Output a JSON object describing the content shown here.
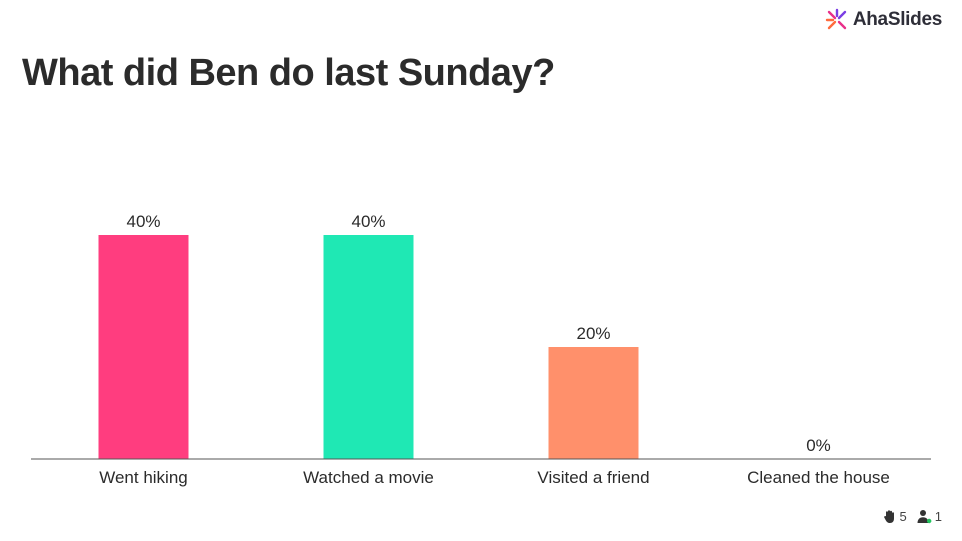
{
  "brand": {
    "name": "AhaSlides",
    "logo_icon": "ahaslides-logo-icon"
  },
  "question": {
    "title": "What did Ben do last Sunday?"
  },
  "footer": {
    "reactions_icon": "hand-icon",
    "reactions_count": "5",
    "participants_icon": "user-icon",
    "participants_count": "1"
  },
  "chart_data": {
    "type": "bar",
    "title": "What did Ben do last Sunday?",
    "categories": [
      "Went hiking",
      "Watched a movie",
      "Visited a friend",
      "Cleaned the house"
    ],
    "values": [
      40,
      40,
      20,
      0
    ],
    "value_labels": [
      "40%",
      "40%",
      "20%",
      "0%"
    ],
    "colors": [
      "#ff3d7f",
      "#1fe8b4",
      "#ff906b",
      "#8a8a8a"
    ],
    "ylim": [
      0,
      40
    ],
    "grid": false,
    "legend": "none"
  }
}
